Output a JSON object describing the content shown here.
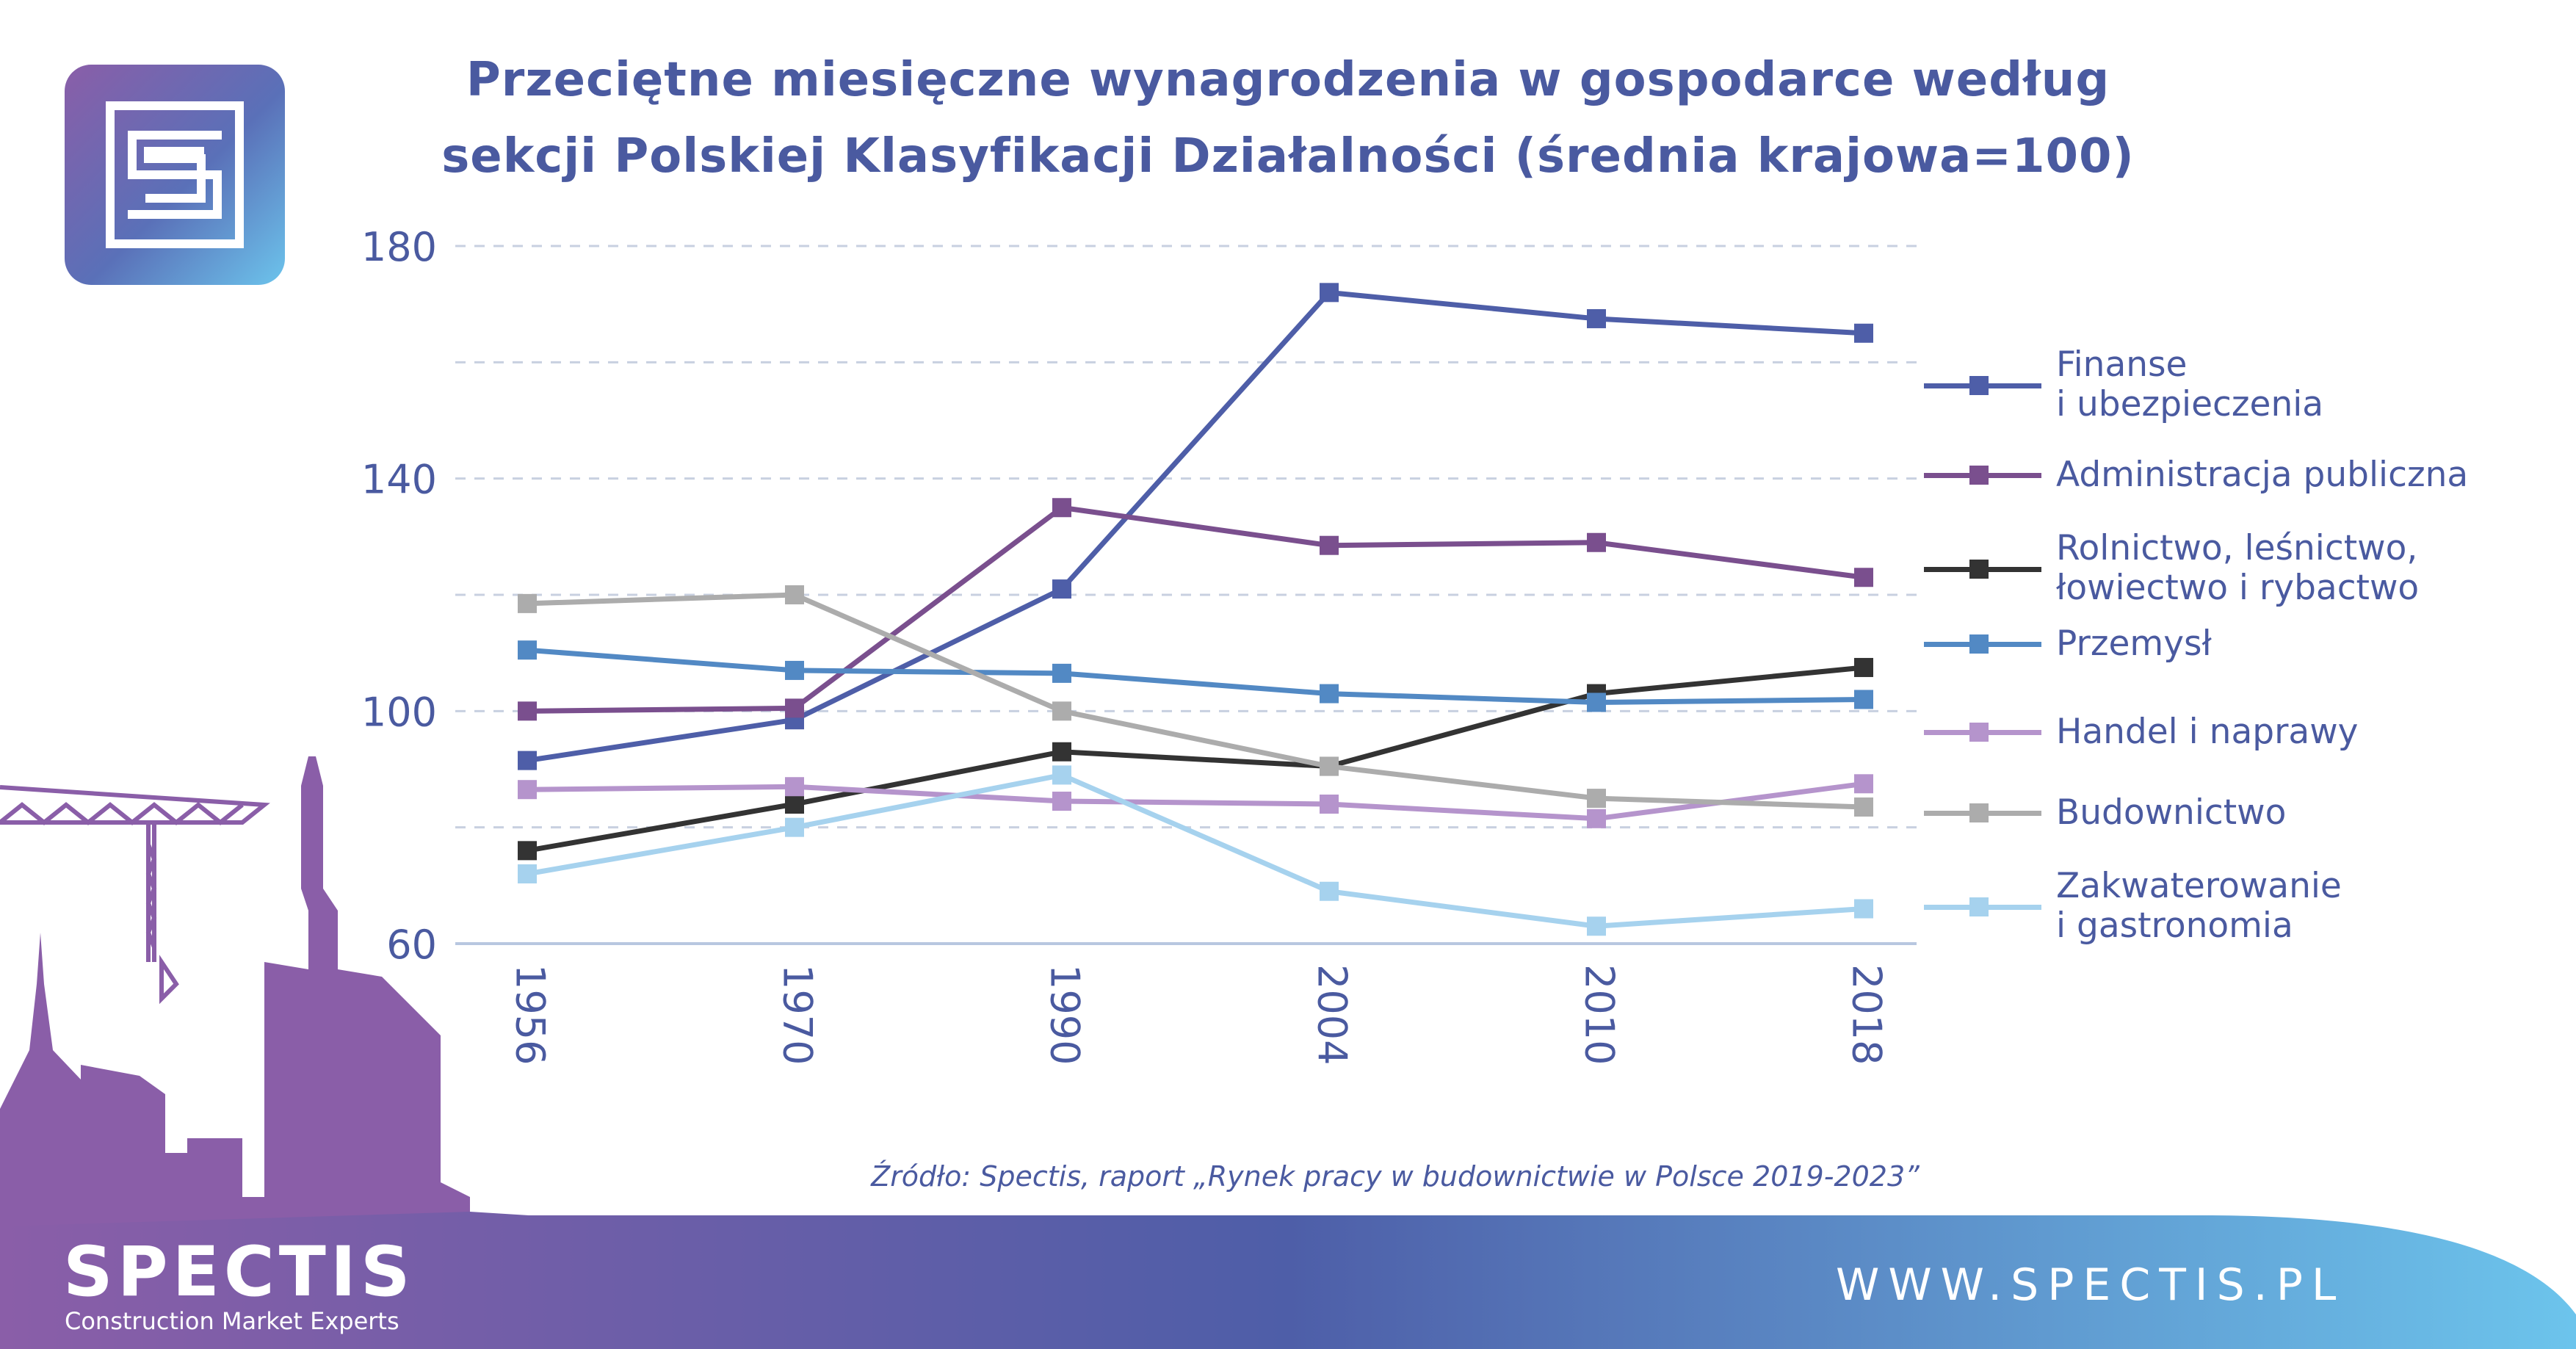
{
  "title_line1": "Przeciętne miesięczne wynagrodzenia w gospodarce według",
  "title_line2": "sekcji Polskiej Klasyfikacji Działalności (średnia krajowa=100)",
  "source": "Źródło: Spectis, raport „Rynek pracy w budownictwie w Polsce 2019-2023”",
  "brand": {
    "name": "SPECTIS",
    "tagline": "Construction Market Experts",
    "url": "WWW.SPECTIS.PL"
  },
  "colors": {
    "title": "#4a5aa0",
    "axis": "#b8c7e0",
    "grid": "#c8d0e0",
    "footer_left": "#8a5ea8",
    "footer_right": "#6cc4ec",
    "skyline": "#8a5ea8"
  },
  "chart_data": {
    "type": "line",
    "x": [
      "1956",
      "1970",
      "1990",
      "2004",
      "2010",
      "2018"
    ],
    "ylim": [
      60,
      180
    ],
    "yticks": [
      60,
      100,
      140,
      180
    ],
    "ygrid": [
      80,
      100,
      120,
      140,
      160,
      180
    ],
    "grid": true,
    "legend_position": "right",
    "series": [
      {
        "name": "Finanse\ni ubezpieczenia",
        "color": "#4e5ea8",
        "values": [
          91.5,
          98.5,
          121,
          172,
          167.5,
          165
        ]
      },
      {
        "name": "Administracja publiczna",
        "color": "#7a4f8e",
        "values": [
          100,
          100.5,
          135,
          128.5,
          129,
          123
        ]
      },
      {
        "name": "Rolnictwo, leśnictwo,\nłowiectwo i rybactwo",
        "color": "#333333",
        "values": [
          76,
          84,
          93,
          90.5,
          103,
          107.5
        ]
      },
      {
        "name": "Przemysł",
        "color": "#5289c4",
        "values": [
          110.5,
          107,
          106.5,
          103,
          101.5,
          102
        ]
      },
      {
        "name": "Handel i naprawy",
        "color": "#b594cc",
        "values": [
          86.5,
          87,
          84.5,
          84,
          81.5,
          87.5
        ]
      },
      {
        "name": "Budownictwo",
        "color": "#acacac",
        "values": [
          118.5,
          120,
          100,
          90.5,
          85,
          83.5
        ]
      },
      {
        "name": "Zakwaterowanie\ni gastronomia",
        "color": "#a6d2ee",
        "values": [
          72,
          80,
          89,
          69,
          63,
          66
        ]
      }
    ]
  }
}
